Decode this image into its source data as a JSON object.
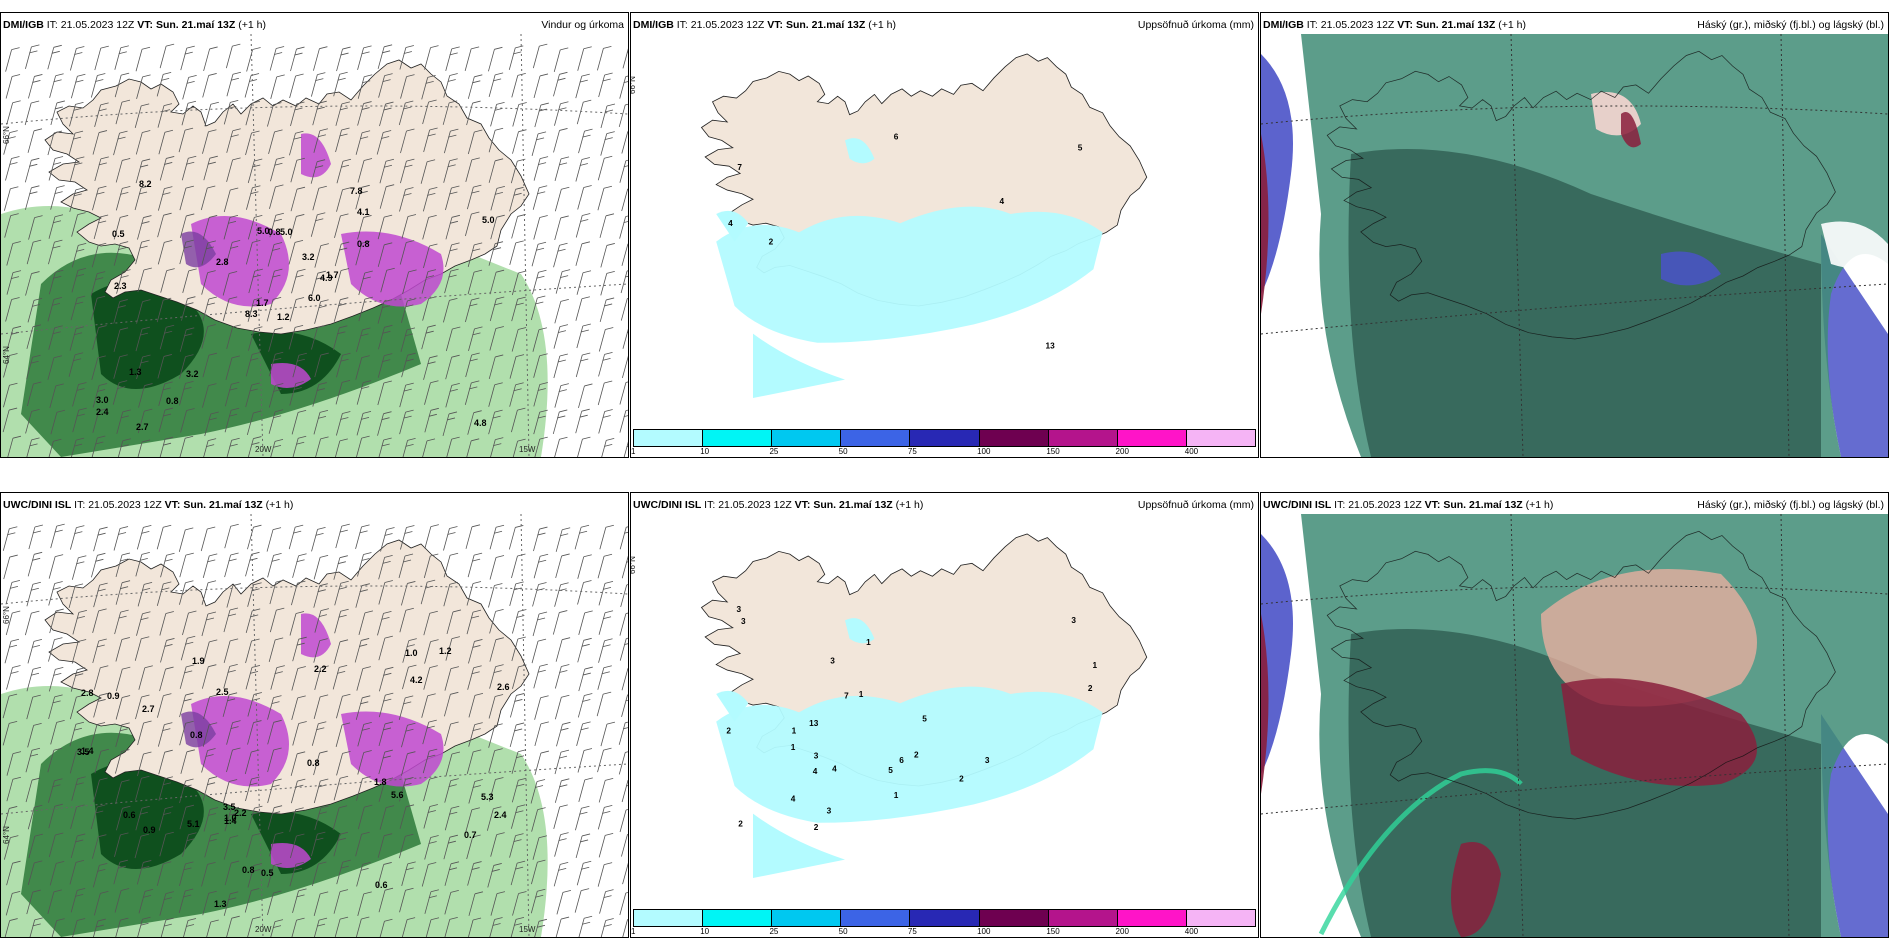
{
  "panels": [
    {
      "model": "DMI/IGB",
      "it_label": "IT:",
      "it": "21.05.2023 12Z",
      "vt_label": "VT:",
      "vt": "Sun. 21.maí 13Z",
      "lead": "(+1 h)",
      "field": "Vindur og úrkoma",
      "type": "wind"
    },
    {
      "model": "DMI/IGB",
      "it_label": "IT:",
      "it": "21.05.2023 12Z",
      "vt_label": "VT:",
      "vt": "Sun. 21.maí 13Z",
      "lead": "(+1 h)",
      "field": "Uppsöfnuð úrkoma (mm)",
      "type": "accum"
    },
    {
      "model": "DMI/IGB",
      "it_label": "IT:",
      "it": "21.05.2023 12Z",
      "vt_label": "VT:",
      "vt": "Sun. 21.maí 13Z",
      "lead": "(+1 h)",
      "field": "Háský (gr.), miðský (fj.bl.) og lágský (bl.)",
      "type": "cloud"
    },
    {
      "model": "UWC/DINI ISL",
      "it_label": "IT:",
      "it": "21.05.2023 12Z",
      "vt_label": "VT:",
      "vt": "Sun. 21.maí 13Z",
      "lead": "(+1 h)",
      "field": "",
      "type": "wind"
    },
    {
      "model": "UWC/DINI ISL",
      "it_label": "IT:",
      "it": "21.05.2023 12Z",
      "vt_label": "VT:",
      "vt": "Sun. 21.maí 13Z",
      "lead": "(+1 h)",
      "field": "Uppsöfnuð úrkoma (mm)",
      "type": "accum"
    },
    {
      "model": "UWC/DINI ISL",
      "it_label": "IT:",
      "it": "21.05.2023 12Z",
      "vt_label": "VT:",
      "vt": "Sun. 21.maí 13Z",
      "lead": "(+1 h)",
      "field": "Háský (gr.), miðský (fj.bl.) og lágský (bl.)",
      "type": "cloud"
    }
  ],
  "axis_labels": {
    "lat66": "66°N",
    "lat64": "64°N",
    "lon20": "20W",
    "lon15": "15W"
  },
  "colorbar": {
    "ticks": [
      "1",
      "10",
      "25",
      "50",
      "75",
      "100",
      "150",
      "200",
      "400"
    ],
    "colors": [
      "#b3fbff",
      "#00f5f5",
      "#00c8f0",
      "#3c64e6",
      "#2828b4",
      "#6e0050",
      "#b4148c",
      "#ff14c8",
      "#f5b4f5"
    ]
  },
  "wind_labels_top": [
    "1.2",
    "0.5",
    "1.7",
    "3.0",
    "4.9",
    "3.2",
    "7.8",
    "5.0",
    "4.1",
    "6.0",
    "8.2",
    "4.8",
    "2.3",
    "5.0",
    "8.3",
    "0.8",
    "2.7",
    "5.0",
    "3.2",
    "1.3",
    "2.8",
    "2.4",
    "0.8",
    "0.8",
    "1.7"
  ],
  "wind_labels_bottom": [
    "2.8",
    "0.6",
    "1.3",
    "1.8",
    "0.7",
    "1.4",
    "3.5",
    "4.2",
    "5.3",
    "2.5",
    "0.9",
    "0.8",
    "2.6",
    "2.7",
    "5.6",
    "5.1",
    "3.5",
    "1.9",
    "2.2",
    "2.4",
    "2.2",
    "0.9",
    "1.4",
    "1.0",
    "0.5",
    "1.2",
    "0.8",
    "0.6",
    "1.0",
    "0.8"
  ],
  "accum_labels_top": [
    "4",
    "6",
    "4",
    "5",
    "7",
    "13",
    "2"
  ],
  "accum_labels_bottom": [
    "3",
    "3",
    "2",
    "3",
    "1",
    "2",
    "1",
    "4",
    "2",
    "3",
    "4",
    "5",
    "2",
    "1",
    "6",
    "7",
    "5",
    "4",
    "3",
    "1",
    "2",
    "1",
    "3",
    "13",
    "1",
    "2",
    "3"
  ],
  "colors": {
    "land": "#f2e6da",
    "wind_green_dark": "#0a4a1a",
    "wind_green_mid": "#2e7a3a",
    "wind_green_light": "#a9dca4",
    "purple": "#c048d0",
    "accum_cyan": "#b3fbff",
    "cloud_teal": "#3f8c76",
    "cloud_dark": "#2c5a4e",
    "cloud_blue": "#4a52c8",
    "cloud_maroon": "#8a1e3c"
  }
}
